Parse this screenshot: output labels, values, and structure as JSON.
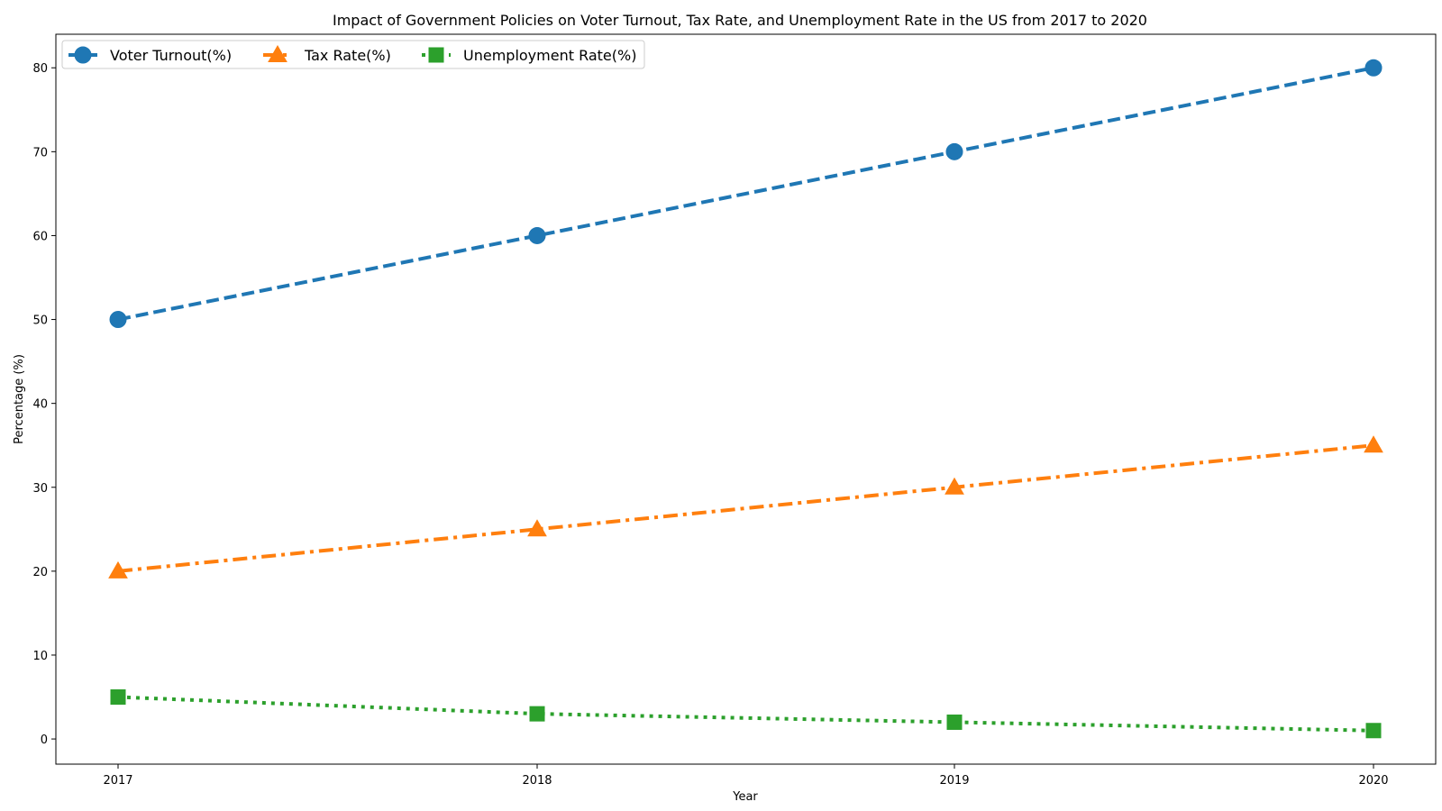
{
  "chart_data": {
    "type": "line",
    "title": "Impact of Government Policies on Voter Turnout, Tax Rate, and Unemployment Rate in the US from 2017 to 2020",
    "xlabel": "Year",
    "ylabel": "Percentage (%)",
    "x": [
      "2017",
      "2018",
      "2019",
      "2020"
    ],
    "ylim": [
      -3,
      84
    ],
    "yticks": [
      "0",
      "10",
      "20",
      "30",
      "40",
      "50",
      "60",
      "70",
      "80"
    ],
    "grid": false,
    "legend_position": "top-left",
    "legend_columns": 3,
    "series": [
      {
        "name": "Voter Turnout(%)",
        "values": [
          50,
          60,
          70,
          80
        ],
        "color": "#1f77b4",
        "line_style": "dashed",
        "marker": "circle"
      },
      {
        "name": "Tax Rate(%)",
        "values": [
          20,
          25,
          30,
          35
        ],
        "color": "#ff7f0e",
        "line_style": "dash-dot",
        "marker": "triangle"
      },
      {
        "name": "Unemployment Rate(%)",
        "values": [
          5,
          3,
          2,
          1
        ],
        "color": "#2ca02c",
        "line_style": "dotted",
        "marker": "square"
      }
    ]
  }
}
